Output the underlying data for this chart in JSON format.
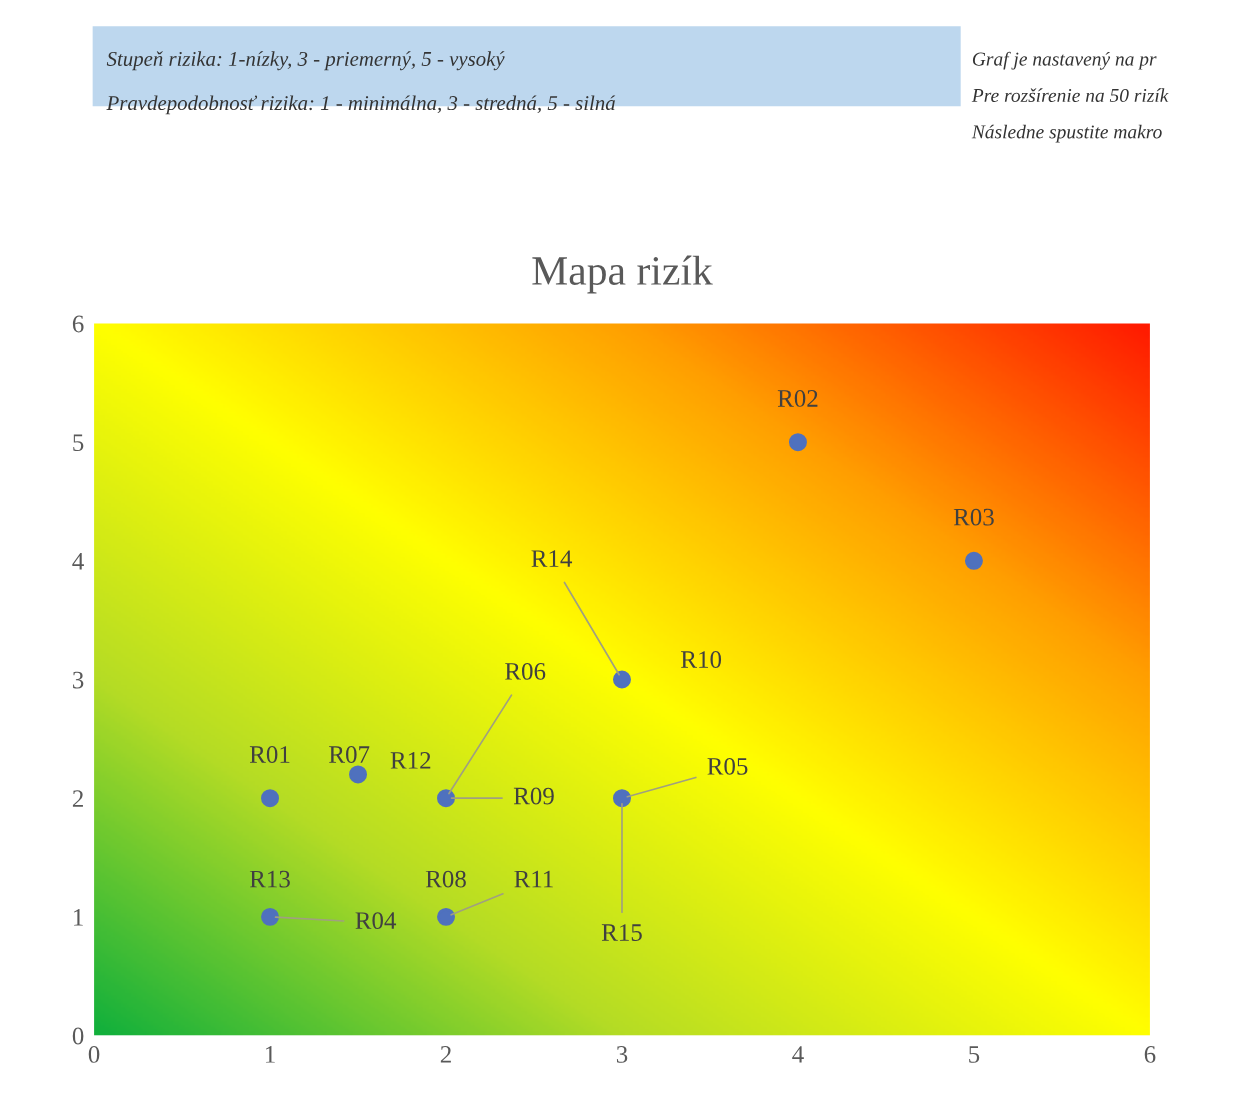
{
  "chart_data": {
    "type": "scatter",
    "title": "Mapa rizík",
    "x": [
      1,
      4,
      5,
      1,
      3,
      2,
      1.5,
      2,
      3
    ],
    "series": [
      {
        "color": "#4f71be",
        "values": [
          2,
          5,
          4,
          1,
          2,
          2,
          2.2,
          1,
          3
        ]
      }
    ],
    "marker": "circle",
    "xlim": [
      0,
      6
    ],
    "ylim": [
      0,
      6
    ],
    "xticks": [
      0,
      1,
      2,
      3,
      4,
      5,
      6
    ],
    "yticks": [
      0,
      1,
      2,
      3,
      4,
      5,
      6
    ],
    "grid": false,
    "legend": false,
    "annotations": [
      "Stupeň rizika: 1-nízky, 3 - priemerný, 5 - vysoký",
      "Pravdepodobnosť rizika: 1 - minimálna, 3 - stredná, 5 - silná",
      "Graf je nastavený na pr",
      "Pre rozšírenie na 50 rizík",
      "Následne spustite makro",
      {
        "text": "R01",
        "x": 1,
        "y": 2
      },
      {
        "text": "R02",
        "x": 4,
        "y": 5
      },
      {
        "text": "R03",
        "x": 5,
        "y": 4
      },
      {
        "text": "R04",
        "x": 1,
        "y": 1
      },
      {
        "text": "R05",
        "x": 3,
        "y": 2
      },
      {
        "text": "R06",
        "x": 2,
        "y": 2
      },
      {
        "text": "R07",
        "x": 1.5,
        "y": 2.2
      },
      {
        "text": "R08",
        "x": 2,
        "y": 1
      },
      {
        "text": "R09",
        "x": 2,
        "y": 2
      },
      {
        "text": "R10",
        "x": 3,
        "y": 3
      },
      {
        "text": "R11",
        "x": 2,
        "y": 1
      },
      {
        "text": "R12",
        "x": 1.5,
        "y": 2.2
      },
      {
        "text": "R13",
        "x": 1,
        "y": 1
      },
      {
        "text": "R14",
        "x": 3,
        "y": 3
      },
      {
        "text": "R15",
        "x": 3,
        "y": 2
      }
    ]
  }
}
